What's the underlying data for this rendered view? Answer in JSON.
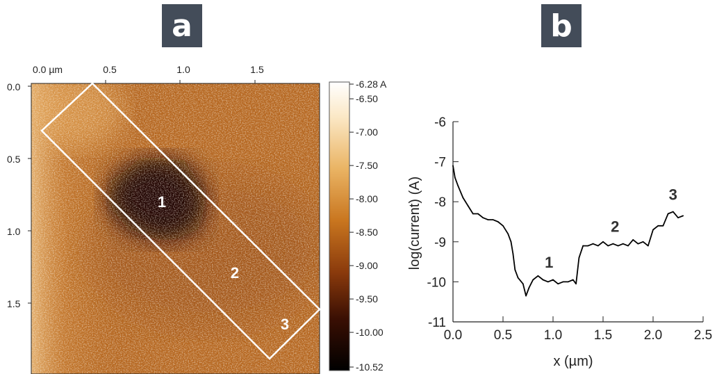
{
  "panel_labels": {
    "a": "a",
    "b": "b"
  },
  "chart_data": [
    {
      "type": "heatmap",
      "title": "",
      "x_ticks": [
        "0.0 µm",
        "0.5",
        "1.0",
        "1.5"
      ],
      "y_ticks": [
        "0.0",
        "0.5",
        "1.0",
        "1.5"
      ],
      "xlim": [
        0,
        2.0
      ],
      "ylim": [
        0,
        2.0
      ],
      "colorbar": {
        "unit_label": "-6.28 A",
        "ticks": [
          "-6.50",
          "-7.00",
          "-7.50",
          "-8.00",
          "-8.50",
          "-9.00",
          "-9.50",
          "-10.00",
          "-10.52"
        ],
        "range": [
          -10.52,
          -6.28
        ],
        "colormap": [
          "#000000",
          "#3a0f03",
          "#8a3a0c",
          "#c9761f",
          "#eeb866",
          "#fff6e4",
          "#ffffff"
        ]
      },
      "region_labels": [
        "1",
        "2",
        "3"
      ]
    },
    {
      "type": "line",
      "xlabel": "x (µm)",
      "ylabel": "log(current) (A)",
      "xlim": [
        0.0,
        2.5
      ],
      "ylim": [
        -11,
        -6
      ],
      "x_ticks": [
        "0.0",
        "0.5",
        "1.0",
        "1.5",
        "2.0",
        "2.5"
      ],
      "y_ticks": [
        "-6",
        "-7",
        "-8",
        "-9",
        "-10",
        "-11"
      ],
      "series": [
        {
          "color": "#000000",
          "x": [
            0.0,
            0.02,
            0.05,
            0.1,
            0.15,
            0.2,
            0.25,
            0.3,
            0.35,
            0.4,
            0.45,
            0.5,
            0.55,
            0.58,
            0.6,
            0.62,
            0.65,
            0.7,
            0.73,
            0.76,
            0.8,
            0.85,
            0.9,
            0.95,
            1.0,
            1.05,
            1.1,
            1.15,
            1.2,
            1.23,
            1.26,
            1.3,
            1.35,
            1.4,
            1.45,
            1.5,
            1.55,
            1.6,
            1.65,
            1.7,
            1.75,
            1.8,
            1.85,
            1.9,
            1.95,
            2.0,
            2.05,
            2.1,
            2.15,
            2.2,
            2.25,
            2.3
          ],
          "y": [
            -7.1,
            -7.4,
            -7.6,
            -7.9,
            -8.1,
            -8.3,
            -8.3,
            -8.4,
            -8.45,
            -8.45,
            -8.5,
            -8.6,
            -8.8,
            -9.0,
            -9.3,
            -9.7,
            -9.9,
            -10.05,
            -10.35,
            -10.15,
            -9.95,
            -9.85,
            -9.95,
            -10.0,
            -9.95,
            -10.05,
            -10.0,
            -10.0,
            -9.95,
            -10.05,
            -9.4,
            -9.1,
            -9.1,
            -9.05,
            -9.1,
            -9.0,
            -9.1,
            -9.05,
            -9.1,
            -9.05,
            -9.1,
            -8.95,
            -9.05,
            -9.0,
            -9.1,
            -8.7,
            -8.6,
            -8.6,
            -8.3,
            -8.25,
            -8.4,
            -8.35
          ]
        }
      ],
      "annotations": [
        {
          "text": "1",
          "x": 0.96,
          "y": -9.65
        },
        {
          "text": "2",
          "x": 1.62,
          "y": -8.75
        },
        {
          "text": "3",
          "x": 2.2,
          "y": -7.95
        }
      ]
    }
  ]
}
